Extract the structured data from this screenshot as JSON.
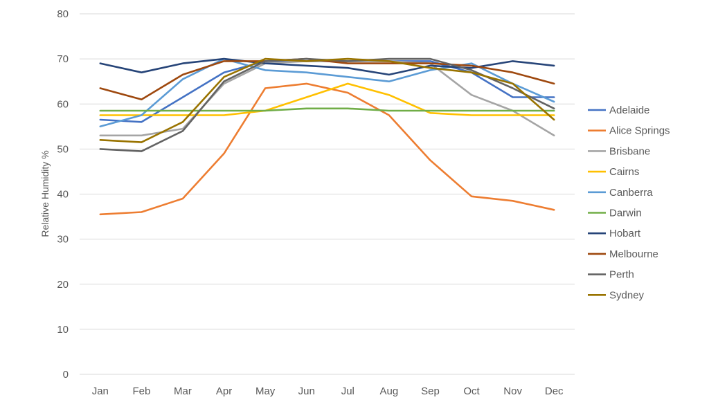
{
  "chart_data": {
    "type": "line",
    "title": "",
    "xlabel": "",
    "ylabel": "Relative Humidity %",
    "ylim": [
      0,
      80
    ],
    "yticks": [
      0,
      10,
      20,
      30,
      40,
      50,
      60,
      70,
      80
    ],
    "grid": true,
    "legend_position": "right",
    "categories": [
      "Jan",
      "Feb",
      "Mar",
      "Apr",
      "May",
      "Jun",
      "Jul",
      "Aug",
      "Sep",
      "Oct",
      "Nov",
      "Dec"
    ],
    "series": [
      {
        "name": "Adelaide",
        "color": "#4472C4",
        "values": [
          56.5,
          56.0,
          61.5,
          67.0,
          69.5,
          69.5,
          69.5,
          69.5,
          69.5,
          67.0,
          61.5,
          61.5
        ]
      },
      {
        "name": "Alice Springs",
        "color": "#ED7D31",
        "values": [
          35.5,
          36.0,
          39.0,
          49.0,
          63.5,
          64.5,
          62.5,
          57.5,
          47.5,
          39.5,
          38.5,
          36.5
        ]
      },
      {
        "name": "Brisbane",
        "color": "#A5A5A5",
        "values": [
          53.0,
          53.0,
          54.5,
          64.5,
          69.0,
          69.5,
          69.5,
          69.5,
          69.0,
          62.0,
          58.5,
          53.0
        ]
      },
      {
        "name": "Cairns",
        "color": "#FFC000",
        "values": [
          57.5,
          57.5,
          57.5,
          57.5,
          58.5,
          61.5,
          64.5,
          62.0,
          58.0,
          57.5,
          57.5,
          57.5
        ]
      },
      {
        "name": "Canberra",
        "color": "#5B9BD5",
        "values": [
          55.0,
          57.5,
          65.5,
          70.0,
          67.5,
          67.0,
          66.0,
          65.0,
          67.5,
          69.0,
          64.5,
          60.5
        ]
      },
      {
        "name": "Darwin",
        "color": "#70AD47",
        "values": [
          58.5,
          58.5,
          58.5,
          58.5,
          58.5,
          59.0,
          59.0,
          58.5,
          58.5,
          58.5,
          58.5,
          58.5
        ]
      },
      {
        "name": "Hobart",
        "color": "#264478",
        "values": [
          69.0,
          67.0,
          69.0,
          70.0,
          69.0,
          68.5,
          68.0,
          66.5,
          68.5,
          68.0,
          69.5,
          68.5
        ]
      },
      {
        "name": "Melbourne",
        "color": "#9E480E",
        "values": [
          63.5,
          61.0,
          66.5,
          69.5,
          69.5,
          70.0,
          69.0,
          69.0,
          69.0,
          68.5,
          67.0,
          64.5
        ]
      },
      {
        "name": "Perth",
        "color": "#636363",
        "values": [
          50.0,
          49.5,
          54.0,
          65.0,
          69.5,
          70.0,
          69.5,
          70.0,
          70.0,
          67.5,
          63.5,
          59.0
        ]
      },
      {
        "name": "Sydney",
        "color": "#997300",
        "values": [
          52.0,
          51.5,
          56.0,
          66.0,
          70.0,
          69.5,
          70.0,
          69.5,
          68.0,
          67.0,
          64.5,
          56.5
        ]
      }
    ]
  }
}
